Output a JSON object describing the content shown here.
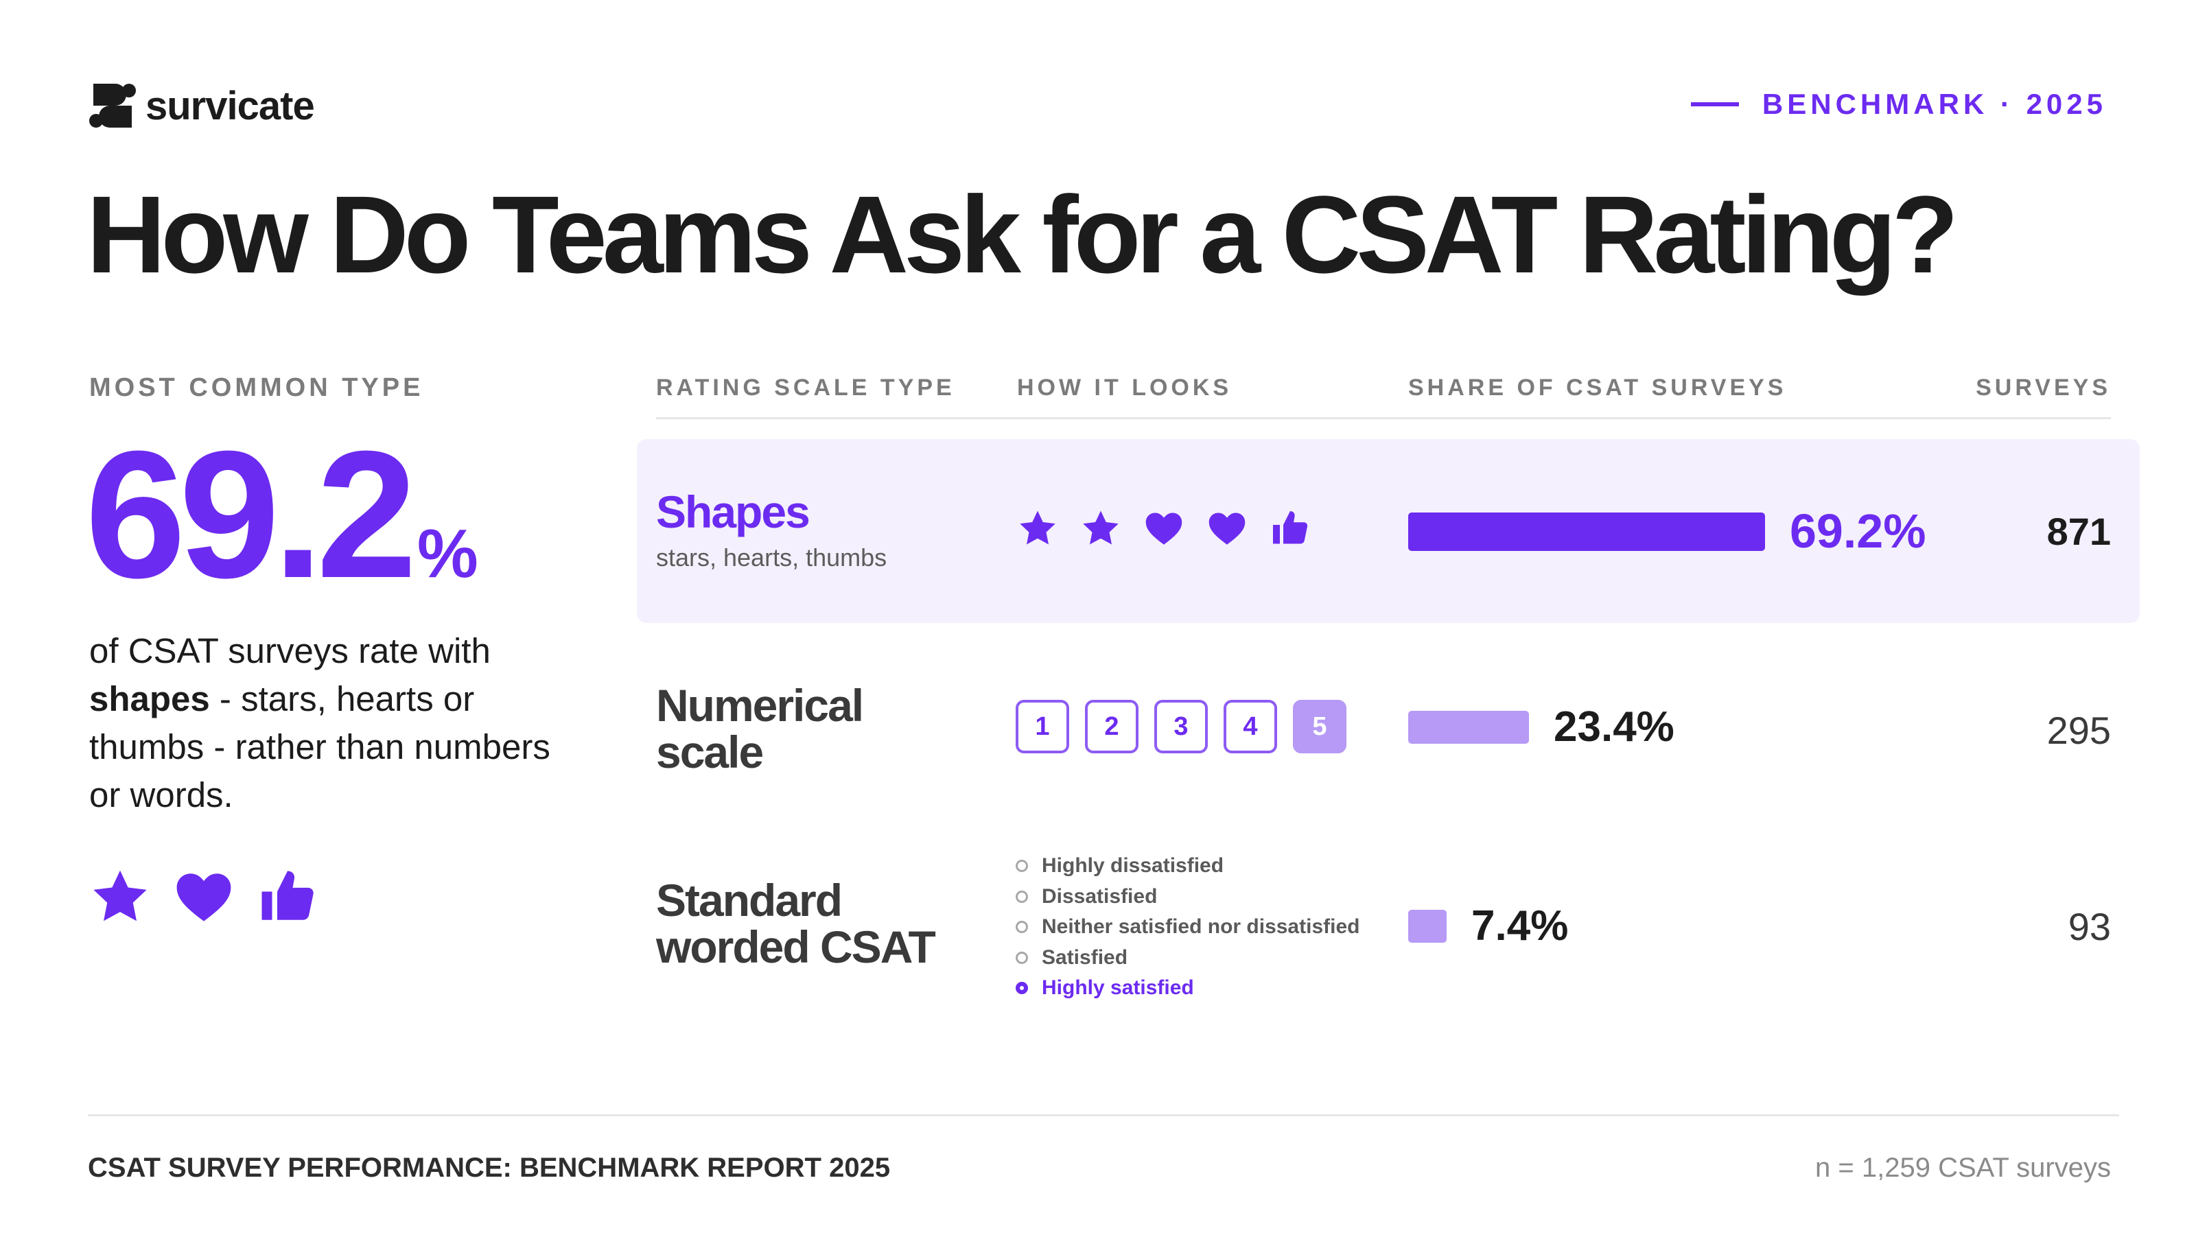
{
  "brand": {
    "name": "survicate"
  },
  "badge": "BENCHMARK · 2025",
  "title": "How Do Teams Ask for a CSAT Rating?",
  "highlight": {
    "kicker": "MOST COMMON TYPE",
    "value": "69.2",
    "unit": "%",
    "text_pre": "of CSAT surveys rate with ",
    "text_bold": "shapes",
    "text_post": " - stars, hearts or thumbs - rather than numbers or words.",
    "icons": [
      "star-icon",
      "heart-icon",
      "thumbs-up-icon"
    ]
  },
  "table": {
    "headers": {
      "type": "RATING SCALE TYPE",
      "looks": "HOW IT LOOKS",
      "share": "SHARE OF CSAT SURVEYS",
      "surveys": "SURVEYS"
    },
    "rows": [
      {
        "name_lines": [
          "Shapes"
        ],
        "sub": "stars, hearts, thumbs",
        "share_label": "69.2%",
        "count_label": "871",
        "preview_icons": [
          "star-icon",
          "star-icon",
          "heart-icon",
          "heart-icon",
          "thumbs-up-icon"
        ]
      },
      {
        "name_lines": [
          "Numerical",
          "scale"
        ],
        "share_label": "23.4%",
        "count_label": "295",
        "preview_numbers": [
          "1",
          "2",
          "3",
          "4",
          "5"
        ],
        "preview_selected": "5"
      },
      {
        "name_lines": [
          "Standard",
          "worded CSAT"
        ],
        "share_label": "7.4%",
        "count_label": "93",
        "preview_options": [
          "Highly dissatisfied",
          "Dissatisfied",
          "Neither satisfied nor dissatisfied",
          "Satisfied",
          "Highly satisfied"
        ],
        "preview_selected": "Highly satisfied"
      }
    ]
  },
  "chart_data": {
    "type": "bar",
    "orientation": "horizontal",
    "categories": [
      "Shapes",
      "Numerical scale",
      "Standard worded CSAT"
    ],
    "series": [
      {
        "values": [
          69.2,
          23.4,
          7.4
        ]
      }
    ],
    "counts": [
      871,
      295,
      93
    ],
    "xlim": [
      0,
      69.2
    ],
    "colors": [
      "#6c2bf0",
      "#b69af5",
      "#b69af5"
    ],
    "grid": false
  },
  "footer": {
    "report": "CSAT SURVEY PERFORMANCE: BENCHMARK REPORT 2025",
    "sample": "n = 1,259 CSAT surveys"
  },
  "colors": {
    "accent": "#6c2bf0",
    "accent_light": "#b69af5",
    "highlight_bg": "#f4f0fd",
    "text": "#1c1c1c",
    "muted": "#7b7b7b"
  }
}
